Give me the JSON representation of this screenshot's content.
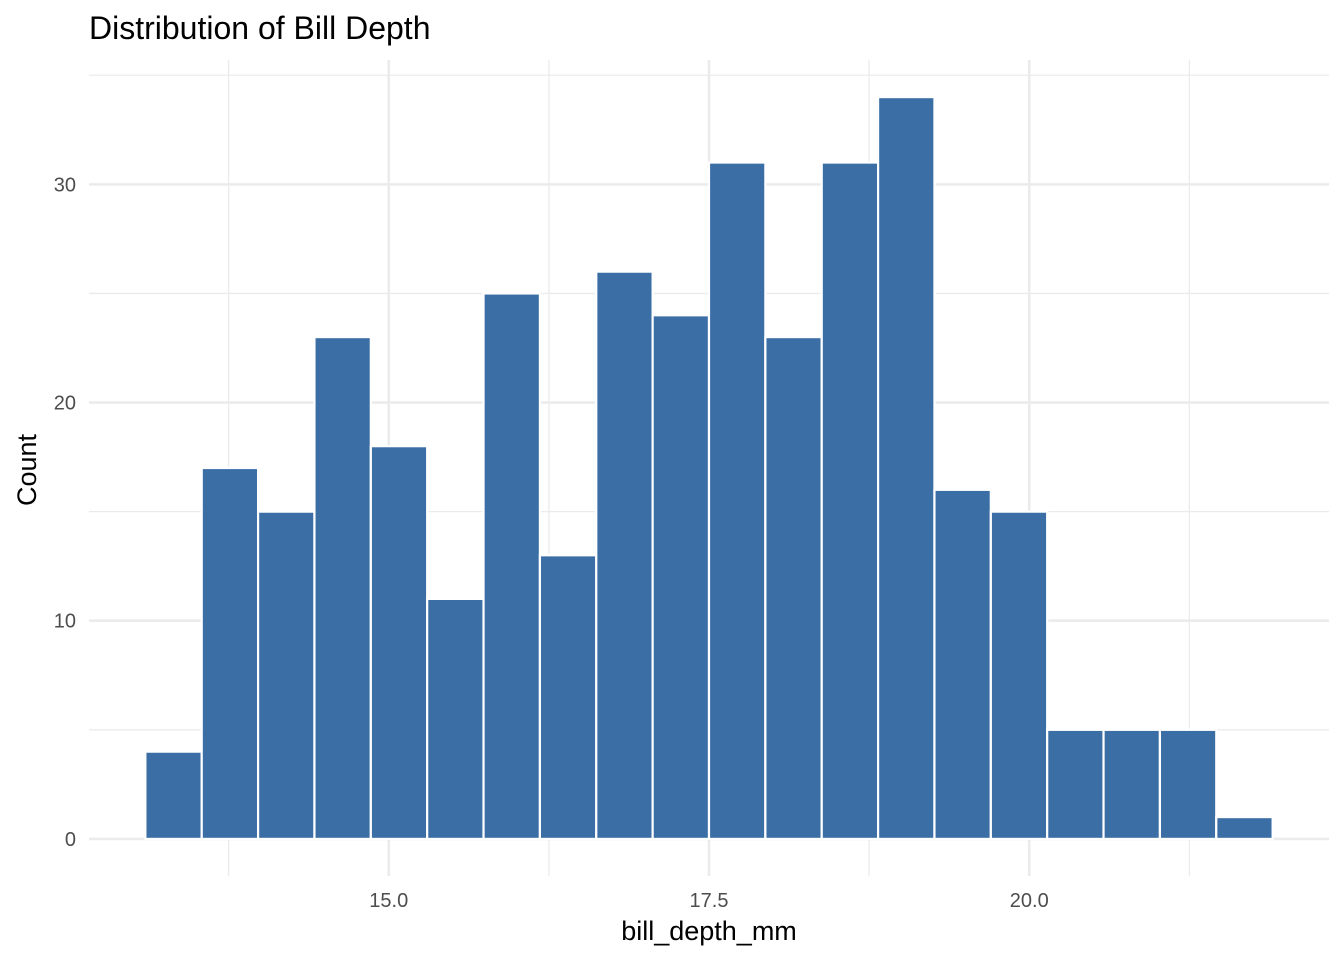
{
  "chart_data": {
    "type": "bar",
    "title": "Distribution of Bill Depth",
    "xlabel": "bill_depth_mm",
    "ylabel": "Count",
    "bin_width": 0.44,
    "bins": [
      {
        "x0": 13.1,
        "x1": 13.54,
        "count": 4
      },
      {
        "x0": 13.54,
        "x1": 13.98,
        "count": 17
      },
      {
        "x0": 13.98,
        "x1": 14.42,
        "count": 15
      },
      {
        "x0": 14.42,
        "x1": 14.86,
        "count": 23
      },
      {
        "x0": 14.86,
        "x1": 15.3,
        "count": 18
      },
      {
        "x0": 15.3,
        "x1": 15.74,
        "count": 11
      },
      {
        "x0": 15.74,
        "x1": 16.18,
        "count": 25
      },
      {
        "x0": 16.18,
        "x1": 16.62,
        "count": 13
      },
      {
        "x0": 16.62,
        "x1": 17.06,
        "count": 26
      },
      {
        "x0": 17.06,
        "x1": 17.5,
        "count": 24
      },
      {
        "x0": 17.5,
        "x1": 17.94,
        "count": 31
      },
      {
        "x0": 17.94,
        "x1": 18.38,
        "count": 23
      },
      {
        "x0": 18.38,
        "x1": 18.82,
        "count": 31
      },
      {
        "x0": 18.82,
        "x1": 19.26,
        "count": 34
      },
      {
        "x0": 19.26,
        "x1": 19.7,
        "count": 16
      },
      {
        "x0": 19.7,
        "x1": 20.14,
        "count": 15
      },
      {
        "x0": 20.14,
        "x1": 20.58,
        "count": 5
      },
      {
        "x0": 20.58,
        "x1": 21.02,
        "count": 5
      },
      {
        "x0": 21.02,
        "x1": 21.46,
        "count": 5
      },
      {
        "x0": 21.46,
        "x1": 21.9,
        "count": 1
      }
    ],
    "xlim": [
      12.66,
      22.34
    ],
    "ylim": [
      -1.7,
      35.7
    ],
    "x_ticks": [
      {
        "value": 15.0,
        "label": "15.0"
      },
      {
        "value": 17.5,
        "label": "17.5"
      },
      {
        "value": 20.0,
        "label": "20.0"
      }
    ],
    "x_minor_ticks": [
      13.75,
      16.25,
      18.75,
      21.25
    ],
    "y_ticks": [
      {
        "value": 0,
        "label": "0"
      },
      {
        "value": 10,
        "label": "10"
      },
      {
        "value": 20,
        "label": "20"
      },
      {
        "value": 30,
        "label": "30"
      }
    ],
    "y_minor_ticks": [
      5,
      15,
      25,
      35
    ],
    "grid": true,
    "legend": "none",
    "colors": {
      "bar_fill": "#3a6ea5",
      "bar_outline": "#ffffff",
      "grid": "#ebebeb",
      "tick_text": "#4d4d4d"
    }
  }
}
